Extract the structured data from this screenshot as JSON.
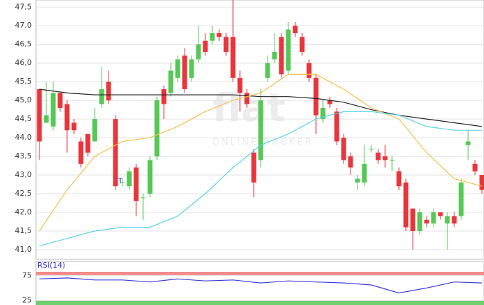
{
  "watermark": {
    "logo": "flat",
    "tagline": "ONLINE BROKER"
  },
  "marker_label": "T",
  "chart_data": [
    {
      "type": "candlestick",
      "grid": true,
      "up_color": "#55c855",
      "down_color": "#e8363c",
      "xlim": [
        -0.5,
        64.3
      ],
      "ylim": [
        40.74,
        47.69
      ],
      "yticks": [
        {
          "value": 41.0,
          "label": "41,0"
        },
        {
          "value": 41.5,
          "label": "41,5"
        },
        {
          "value": 42.0,
          "label": "42,0"
        },
        {
          "value": 42.5,
          "label": "42,5"
        },
        {
          "value": 43.0,
          "label": "43,0"
        },
        {
          "value": 43.5,
          "label": "43,5"
        },
        {
          "value": 44.0,
          "label": "44,0"
        },
        {
          "value": 44.5,
          "label": "44,5"
        },
        {
          "value": 45.0,
          "label": "45,0"
        },
        {
          "value": 45.5,
          "label": "45,5"
        },
        {
          "value": 46.0,
          "label": "46,0"
        },
        {
          "value": 46.5,
          "label": "46,5"
        },
        {
          "value": 47.0,
          "label": "47,0"
        },
        {
          "value": 47.5,
          "label": "47,5"
        }
      ],
      "open": [
        45.3,
        44.4,
        44.3,
        45.2,
        44.9,
        44.4,
        43.9,
        44.1,
        43.9,
        44.9,
        45.5,
        44.5,
        42.8,
        42.7,
        43.2,
        42.4,
        42.5,
        43.5,
        45.3,
        45.2,
        45.6,
        46.2,
        45.6,
        46.1,
        46.6,
        46.6,
        46.8,
        46.7,
        46.7,
        45.6,
        45.2,
        43.6,
        43.4,
        45.6,
        46.1,
        46.7,
        45.8,
        47.0,
        46.7,
        46.0,
        45.6,
        44.5,
        45.0,
        44.7,
        44.0,
        43.5,
        42.8,
        42.8,
        43.7,
        43.6,
        43.5,
        43.4,
        43.1,
        42.8,
        42.1,
        41.5,
        41.8,
        41.7,
        42.0,
        41.7,
        41.9,
        41.9,
        43.8,
        43.3,
        43.0
      ],
      "high": [
        45.3,
        45.5,
        45.5,
        45.2,
        45.0,
        44.5,
        44.0,
        44.1,
        44.8,
        45.9,
        45.8,
        44.6,
        42.9,
        43.2,
        43.3,
        42.5,
        43.5,
        45.1,
        45.4,
        46.0,
        46.2,
        46.4,
        46.2,
        47.0,
        46.8,
        47.0,
        46.9,
        46.8,
        47.7,
        45.8,
        45.3,
        43.7,
        45.3,
        46.2,
        46.8,
        46.8,
        47.1,
        47.1,
        46.8,
        46.1,
        45.7,
        45.0,
        45.1,
        44.8,
        44.1,
        43.6,
        43.0,
        43.8,
        43.8,
        43.7,
        43.8,
        43.5,
        43.2,
        42.9,
        42.1,
        42.1,
        41.9,
        42.1,
        42.0,
        42.0,
        42.0,
        42.9,
        44.2,
        43.4,
        43.0
      ],
      "low": [
        43.4,
        44.4,
        44.2,
        44.7,
        43.6,
        44.1,
        43.2,
        43.5,
        43.9,
        44.8,
        44.9,
        42.6,
        42.7,
        42.6,
        41.9,
        41.8,
        42.4,
        43.4,
        44.5,
        45.1,
        45.5,
        45.2,
        45.5,
        46.0,
        46.2,
        46.5,
        46.6,
        46.2,
        45.5,
        44.7,
        44.8,
        42.4,
        43.2,
        45.5,
        46.0,
        45.6,
        45.7,
        46.7,
        46.2,
        45.5,
        44.1,
        44.4,
        44.8,
        43.8,
        43.3,
        43.0,
        42.6,
        42.7,
        43.6,
        43.3,
        43.2,
        43.1,
        42.6,
        41.5,
        41.0,
        41.4,
        41.6,
        41.6,
        41.8,
        41.0,
        41.6,
        41.8,
        43.4,
        43.0,
        42.5
      ],
      "close": [
        43.9,
        44.6,
        45.2,
        44.8,
        44.2,
        44.2,
        43.3,
        43.6,
        44.5,
        45.3,
        45.0,
        42.7,
        42.8,
        43.1,
        42.3,
        42.4,
        43.4,
        45.0,
        44.9,
        45.8,
        46.1,
        45.3,
        46.1,
        46.5,
        46.3,
        46.8,
        46.7,
        46.3,
        45.6,
        45.2,
        44.9,
        42.8,
        45.0,
        46.0,
        46.3,
        45.7,
        46.9,
        46.8,
        46.3,
        45.6,
        44.6,
        44.8,
        44.9,
        43.9,
        43.4,
        43.2,
        42.9,
        43.3,
        43.7,
        43.4,
        43.4,
        43.4,
        42.7,
        41.6,
        41.5,
        42.0,
        41.7,
        42.0,
        41.9,
        41.9,
        41.7,
        42.8,
        43.9,
        43.1,
        42.6
      ],
      "overlays": [
        {
          "color": "#222222",
          "x": [
            0,
            4,
            8,
            12,
            16,
            20,
            24,
            28,
            32,
            36,
            40,
            44,
            48,
            52,
            56,
            60,
            64
          ],
          "values": [
            45.3,
            45.2,
            45.15,
            45.15,
            45.15,
            45.15,
            45.15,
            45.15,
            45.1,
            45.1,
            45.05,
            44.95,
            44.75,
            44.6,
            44.5,
            44.4,
            44.3
          ]
        },
        {
          "color": "#f5c04a",
          "x": [
            0,
            4,
            8,
            12,
            16,
            20,
            24,
            28,
            32,
            36,
            40,
            44,
            48,
            52,
            56,
            60,
            64
          ],
          "values": [
            41.5,
            42.6,
            43.5,
            43.9,
            44.0,
            44.3,
            44.7,
            45.0,
            45.2,
            45.7,
            45.7,
            45.3,
            44.8,
            44.5,
            43.6,
            42.9,
            42.7
          ]
        },
        {
          "color": "#5ad2ea",
          "x": [
            0,
            4,
            8,
            12,
            16,
            20,
            24,
            28,
            32,
            36,
            40,
            44,
            48,
            52,
            56,
            60,
            64
          ],
          "values": [
            41.1,
            41.3,
            41.5,
            41.6,
            41.6,
            41.9,
            42.5,
            43.2,
            43.8,
            44.1,
            44.5,
            44.7,
            44.7,
            44.6,
            44.3,
            44.2,
            44.2
          ]
        }
      ]
    },
    {
      "type": "line",
      "title": "RSI(14)",
      "color": "#3a3ae0",
      "upper_band_color": "#f48a8a",
      "lower_band_color": "#6fd06f",
      "xlim": [
        -0.5,
        64.3
      ],
      "ylim": [
        16,
        103
      ],
      "yticks": [
        75,
        25
      ],
      "x": [
        0,
        4,
        8,
        12,
        16,
        20,
        24,
        28,
        32,
        36,
        40,
        44,
        48,
        52,
        56,
        60,
        64
      ],
      "values": [
        68,
        70,
        66,
        66,
        62,
        68,
        64,
        66,
        60,
        64,
        62,
        60,
        56,
        40,
        50,
        62,
        60
      ]
    }
  ]
}
